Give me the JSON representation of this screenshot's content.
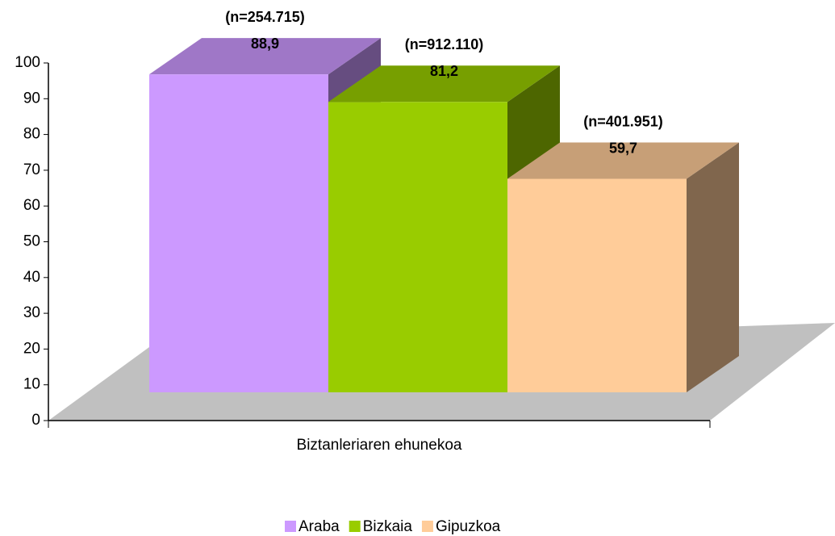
{
  "chart_data": {
    "type": "bar3d",
    "categories": [
      "Biztanleriaren ehunekoa"
    ],
    "series": [
      {
        "name": "Araba",
        "color": "#cc99ff",
        "values": [
          88.9
        ],
        "value_labels": [
          "88,9"
        ],
        "annotation": "(n=254.715)"
      },
      {
        "name": "Bizkaia",
        "color": "#99cc00",
        "values": [
          81.2
        ],
        "value_labels": [
          "81,2"
        ],
        "annotation": "(n=912.110)"
      },
      {
        "name": "Gipuzkoa",
        "color": "#ffcc99",
        "values": [
          59.7
        ],
        "value_labels": [
          "59,7"
        ],
        "annotation": "(n=401.951)"
      }
    ],
    "ylim": [
      0,
      100
    ],
    "yticks": [
      0,
      10,
      20,
      30,
      40,
      50,
      60,
      70,
      80,
      90,
      100
    ],
    "legend": "bottom"
  }
}
